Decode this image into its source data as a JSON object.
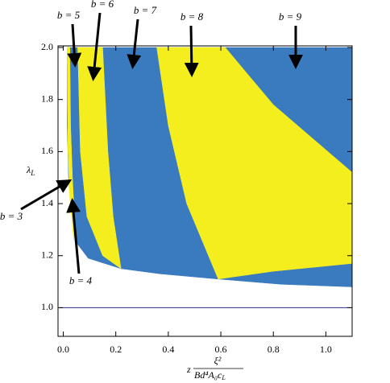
{
  "chart_data": {
    "type": "region",
    "x_label": {
      "prefix": "z",
      "numerator": "ξ²",
      "denominator": "Bd⁴A₀c",
      "denominator_sub": "L"
    },
    "y_label": {
      "text": "λ",
      "sub": "L"
    },
    "xlim": [
      -0.02,
      1.1
    ],
    "ylim": [
      0.89,
      2.0
    ],
    "xticks": [
      {
        "value": 0,
        "label": "0.0"
      },
      0.2,
      0.4,
      0.6,
      0.8,
      {
        "value": 1,
        "label": "1.0"
      }
    ],
    "yticks": [
      {
        "value": 1,
        "label": "1.0"
      },
      1.2,
      1.4,
      1.6,
      1.8,
      {
        "value": 2,
        "label": "2.0"
      }
    ],
    "hline": {
      "y": 1.0,
      "color": "#2b2b86"
    },
    "series": [
      {
        "color": "#3a7abf",
        "x": [
          0.015,
          1.1,
          1.1,
          0.83,
          0.59,
          0.37,
          0.22,
          0.095,
          0.05,
          0.03,
          0.02,
          0.015
        ],
        "values": [
          2.0,
          2.0,
          1.08,
          1.09,
          1.11,
          1.13,
          1.15,
          1.19,
          1.25,
          1.38,
          1.5,
          1.7
        ]
      },
      {
        "color": "#f5ee1e",
        "x": [
          0.015,
          0.025,
          0.028,
          0.035,
          0.045,
          0.04,
          0.025,
          0.018
        ],
        "values": [
          2.0,
          2.0,
          1.7,
          1.5,
          1.3,
          1.26,
          1.42,
          1.6
        ]
      },
      {
        "color": "#f5ee1e",
        "x": [
          0.055,
          0.15,
          0.17,
          0.19,
          0.22,
          0.15,
          0.09,
          0.065
        ],
        "values": [
          2.0,
          2.0,
          1.6,
          1.35,
          1.15,
          1.2,
          1.35,
          1.6
        ]
      },
      {
        "color": "#f5ee1e",
        "x": [
          0.356,
          0.617,
          0.7,
          0.8,
          0.95,
          1.1,
          1.1,
          0.8,
          0.59,
          0.47,
          0.4
        ],
        "values": [
          2.0,
          2.0,
          1.9,
          1.78,
          1.65,
          1.52,
          1.17,
          1.14,
          1.11,
          1.4,
          1.7
        ]
      }
    ],
    "annotations": [
      "b = 3",
      "b = 4",
      "b = 5",
      "b = 6",
      "b = 7",
      "b = 8",
      "b = 9"
    ]
  }
}
